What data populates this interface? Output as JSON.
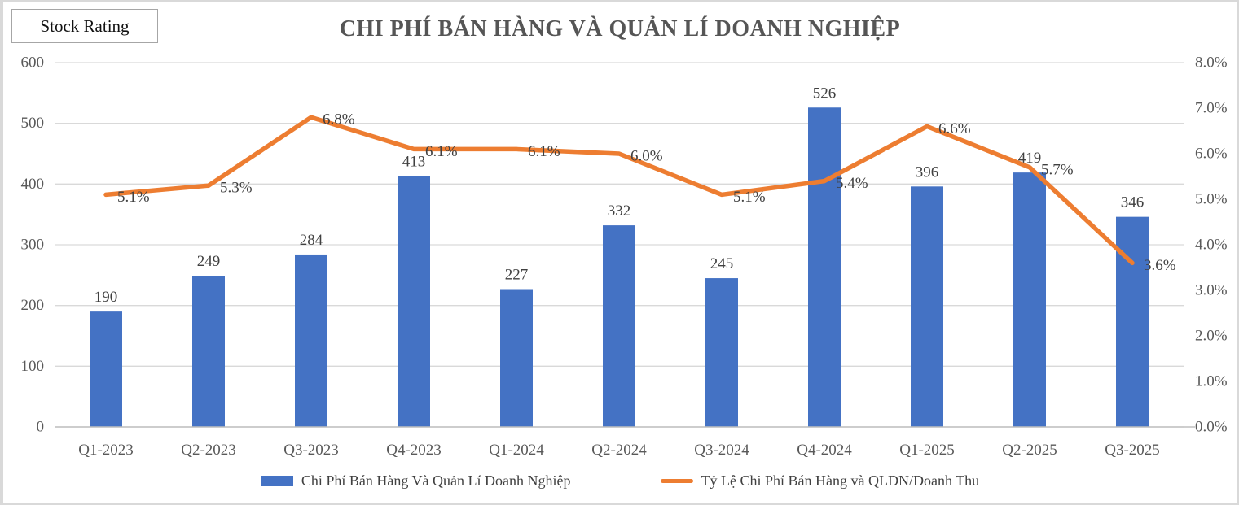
{
  "frame": {
    "stock_rating_label": "Stock Rating"
  },
  "chart_data": {
    "type": "bar",
    "subtype": "combo-bar-line",
    "title": "CHI PHÍ BÁN HÀNG VÀ QUẢN LÍ DOANH NGHIỆP",
    "categories": [
      "Q1-2023",
      "Q2-2023",
      "Q3-2023",
      "Q4-2023",
      "Q1-2024",
      "Q2-2024",
      "Q3-2024",
      "Q4-2024",
      "Q1-2025",
      "Q2-2025",
      "Q3-2025"
    ],
    "series": [
      {
        "name": "Chi Phí Bán Hàng Và Quản Lí Doanh Nghiệp",
        "type": "bar",
        "axis": "left",
        "color": "#4472C4",
        "values": [
          190,
          249,
          284,
          413,
          227,
          332,
          245,
          526,
          396,
          419,
          346
        ],
        "data_labels": [
          "190",
          "249",
          "284",
          "413",
          "227",
          "332",
          "245",
          "526",
          "396",
          "419",
          "346"
        ]
      },
      {
        "name": "Tỷ Lệ Chi Phí Bán Hàng và QLDN/Doanh Thu",
        "type": "line",
        "axis": "right",
        "color": "#ED7D31",
        "values": [
          5.1,
          5.3,
          6.8,
          6.1,
          6.1,
          6.0,
          5.1,
          5.4,
          6.6,
          5.7,
          3.6
        ],
        "data_labels": [
          "5.1%",
          "5.3%",
          "6.8%",
          "6.1%",
          "6.1%",
          "6.0%",
          "5.1%",
          "5.4%",
          "6.6%",
          "5.7%",
          "3.6%"
        ]
      }
    ],
    "left_axis": {
      "min": 0,
      "max": 600,
      "step": 100,
      "ticks": [
        "0",
        "100",
        "200",
        "300",
        "400",
        "500",
        "600"
      ]
    },
    "right_axis": {
      "min": 0,
      "max": 8,
      "step": 1,
      "ticks": [
        "0.0%",
        "1.0%",
        "2.0%",
        "3.0%",
        "4.0%",
        "5.0%",
        "6.0%",
        "7.0%",
        "8.0%"
      ]
    },
    "grid": true,
    "legend_position": "bottom",
    "colors": {
      "grid": "#D9D9D9",
      "axis_line": "#BFBFBF",
      "axis_text": "#595959",
      "data_label_text": "#404040",
      "title_text": "#555555"
    }
  }
}
